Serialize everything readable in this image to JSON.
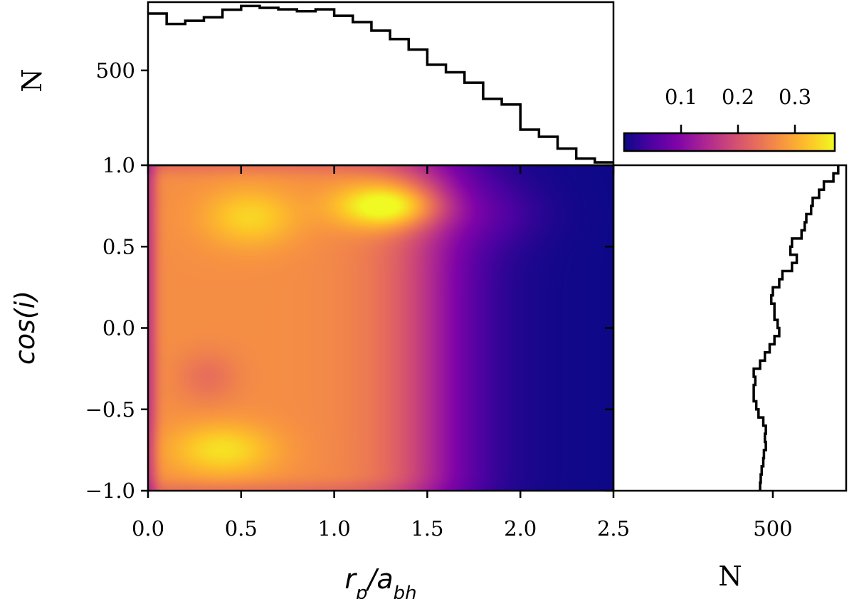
{
  "chart_data": [
    {
      "type": "heatmap",
      "name": "main-density",
      "description_kind": "2D KDE density",
      "xlabel": "r_p/a_bh",
      "ylabel": "cos(i)",
      "xlim": [
        0.0,
        2.5
      ],
      "ylim": [
        -1.0,
        1.0
      ],
      "x_ticks": [
        0.0,
        0.5,
        1.0,
        1.5,
        2.0,
        2.5
      ],
      "x_tick_labels": [
        "0.0",
        "0.5",
        "1.0",
        "1.5",
        "2.0",
        "2.5"
      ],
      "y_ticks": [
        -1.0,
        -0.5,
        0.0,
        0.5,
        1.0
      ],
      "y_tick_labels": [
        "−1.0",
        "−0.5",
        "0.0",
        "0.5",
        "1.0"
      ],
      "colormap": "plasma",
      "density_peaks": [
        {
          "x": 1.3,
          "y": 0.75,
          "value": 0.36
        },
        {
          "x": 0.5,
          "y": 0.68,
          "value": 0.31
        },
        {
          "x": 0.4,
          "y": -0.75,
          "value": 0.31
        }
      ]
    },
    {
      "type": "bar",
      "name": "top-histogram",
      "style": "step",
      "xlim": [
        0.0,
        2.5
      ],
      "ylabel": "N",
      "ylim": [
        0,
        860
      ],
      "y_ticks": [
        500
      ],
      "y_tick_labels": [
        "500"
      ],
      "bin_edges": [
        0.0,
        0.1,
        0.2,
        0.3,
        0.4,
        0.5,
        0.6,
        0.7,
        0.8,
        0.9,
        1.0,
        1.1,
        1.2,
        1.3,
        1.4,
        1.5,
        1.6,
        1.7,
        1.8,
        1.9,
        2.0,
        2.1,
        2.2,
        2.3,
        2.4,
        2.5
      ],
      "values": [
        800,
        745,
        762,
        780,
        820,
        840,
        830,
        822,
        812,
        822,
        788,
        755,
        710,
        665,
        610,
        530,
        490,
        435,
        350,
        320,
        188,
        150,
        88,
        35,
        15
      ]
    },
    {
      "type": "bar",
      "name": "right-histogram",
      "style": "step",
      "orientation": "horizontal",
      "ylim": [
        -1.0,
        1.0
      ],
      "xlabel": "N",
      "xlim": [
        0,
        730
      ],
      "x_ticks": [
        500
      ],
      "x_tick_labels": [
        "500"
      ],
      "bin_edges": [
        -1.0,
        -0.95,
        -0.9,
        -0.85,
        -0.8,
        -0.75,
        -0.7,
        -0.65,
        -0.6,
        -0.55,
        -0.5,
        -0.45,
        -0.4,
        -0.35,
        -0.3,
        -0.25,
        -0.2,
        -0.15,
        -0.1,
        -0.05,
        0.0,
        0.05,
        0.1,
        0.15,
        0.2,
        0.25,
        0.3,
        0.35,
        0.4,
        0.45,
        0.5,
        0.55,
        0.6,
        0.65,
        0.7,
        0.75,
        0.8,
        0.85,
        0.9,
        0.95,
        1.0
      ],
      "values": [
        460,
        462,
        465,
        470,
        472,
        478,
        475,
        478,
        470,
        455,
        448,
        440,
        440,
        445,
        440,
        460,
        475,
        490,
        505,
        520,
        515,
        505,
        505,
        495,
        500,
        520,
        530,
        560,
        575,
        555,
        560,
        590,
        600,
        605,
        620,
        625,
        645,
        660,
        690,
        705
      ]
    },
    {
      "type": "heatmap",
      "name": "colorbar",
      "colormap": "plasma",
      "range": [
        0.0,
        0.37
      ],
      "ticks": [
        0.1,
        0.2,
        0.3
      ],
      "tick_labels": [
        "0.1",
        "0.2",
        "0.3"
      ]
    }
  ]
}
